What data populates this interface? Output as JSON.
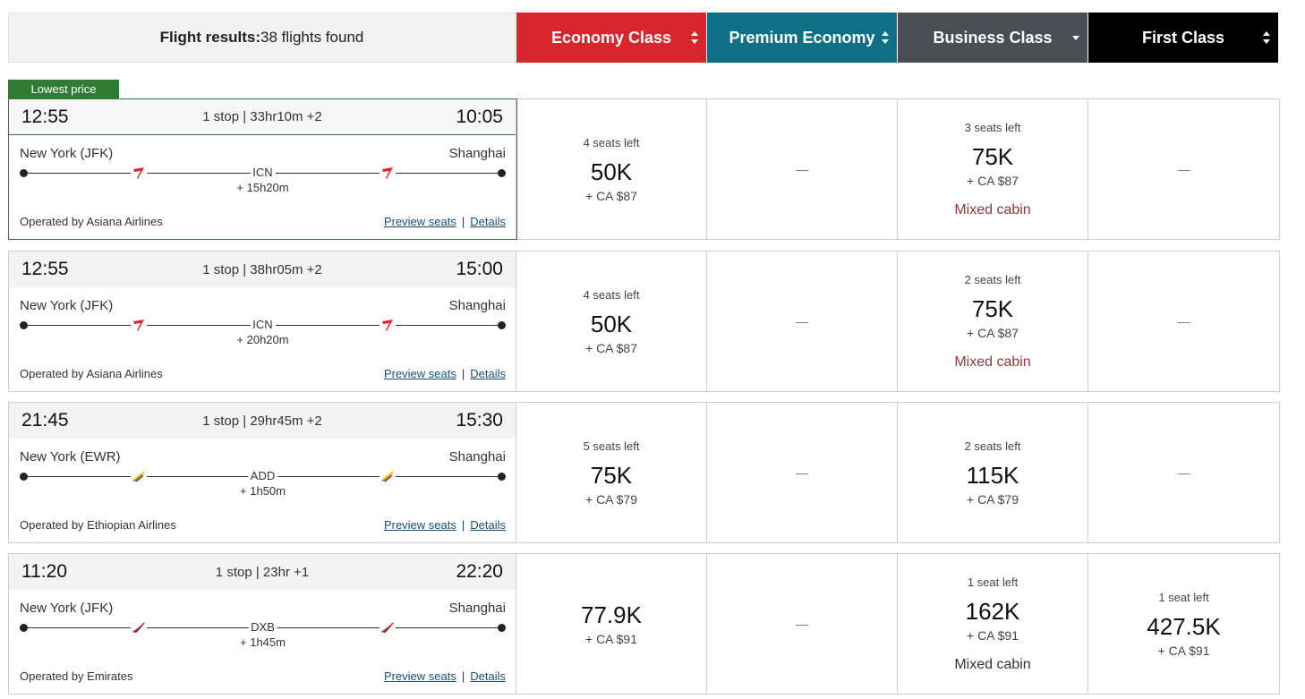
{
  "summary": {
    "label": "Flight results:",
    "count_text": "38 flights found"
  },
  "cabins": [
    {
      "label": "Economy Class",
      "color": "#d9262c",
      "sort": "both"
    },
    {
      "label": "Premium Economy",
      "color": "#0e6f86",
      "sort": "both"
    },
    {
      "label": "Business Class",
      "color": "#4a4d52",
      "sort": "down"
    },
    {
      "label": "First Class",
      "color": "#000000",
      "sort": "both"
    }
  ],
  "badge": "Lowest price",
  "flights": [
    {
      "depart": "12:55",
      "stops": "1 stop | 33hr10m +2",
      "arrive": "10:05",
      "origin": "New York (JFK)",
      "destination": "Shanghai",
      "stop_code": "ICN",
      "layover": "+ 15h20m",
      "airline_icon": "asiana-logo-icon",
      "operator": "Operated by Asiana Airlines",
      "preview": "Preview seats",
      "sep": "|",
      "details": "Details",
      "fares": [
        {
          "seats": "4 seats left",
          "points": "50K",
          "tax": "+ CA $87",
          "note": ""
        },
        {
          "dash": "—"
        },
        {
          "seats": "3 seats left",
          "points": "75K",
          "tax": "+ CA $87",
          "note": "Mixed cabin"
        },
        {
          "dash": "—"
        }
      ]
    },
    {
      "depart": "12:55",
      "stops": "1 stop | 38hr05m +2",
      "arrive": "15:00",
      "origin": "New York (JFK)",
      "destination": "Shanghai",
      "stop_code": "ICN",
      "layover": "+ 20h20m",
      "airline_icon": "asiana-logo-icon",
      "operator": "Operated by Asiana Airlines",
      "preview": "Preview seats",
      "sep": "|",
      "details": "Details",
      "fares": [
        {
          "seats": "4 seats left",
          "points": "50K",
          "tax": "+ CA $87",
          "note": ""
        },
        {
          "dash": "—"
        },
        {
          "seats": "2 seats left",
          "points": "75K",
          "tax": "+ CA $87",
          "note": "Mixed cabin"
        },
        {
          "dash": "—"
        }
      ]
    },
    {
      "depart": "21:45",
      "stops": "1 stop | 29hr45m +2",
      "arrive": "15:30",
      "origin": "New York (EWR)",
      "destination": "Shanghai",
      "stop_code": "ADD",
      "layover": "+ 1h50m",
      "airline_icon": "ethiopian-logo-icon",
      "operator": "Operated by Ethiopian Airlines",
      "preview": "Preview seats",
      "sep": "|",
      "details": "Details",
      "fares": [
        {
          "seats": "5 seats left",
          "points": "75K",
          "tax": "+ CA $79",
          "note": ""
        },
        {
          "dash": "—"
        },
        {
          "seats": "2 seats left",
          "points": "115K",
          "tax": "+ CA $79",
          "note": ""
        },
        {
          "dash": "—"
        }
      ]
    },
    {
      "depart": "11:20",
      "stops": "1 stop | 23hr +1",
      "arrive": "22:20",
      "origin": "New York (JFK)",
      "destination": "Shanghai",
      "stop_code": "DXB",
      "layover": "+ 1h45m",
      "airline_icon": "emirates-logo-icon",
      "operator": "Operated by Emirates",
      "preview": "Preview seats",
      "sep": "|",
      "details": "Details",
      "fares": [
        {
          "seats": "",
          "points": "77.9K",
          "tax": "+ CA $91",
          "note": ""
        },
        {
          "dash": "—"
        },
        {
          "seats": "1 seat left",
          "points": "162K",
          "tax": "+ CA $91",
          "note": "Mixed cabin"
        },
        {
          "seats": "1 seat left",
          "points": "427.5K",
          "tax": "+ CA $91",
          "note": ""
        }
      ]
    }
  ]
}
